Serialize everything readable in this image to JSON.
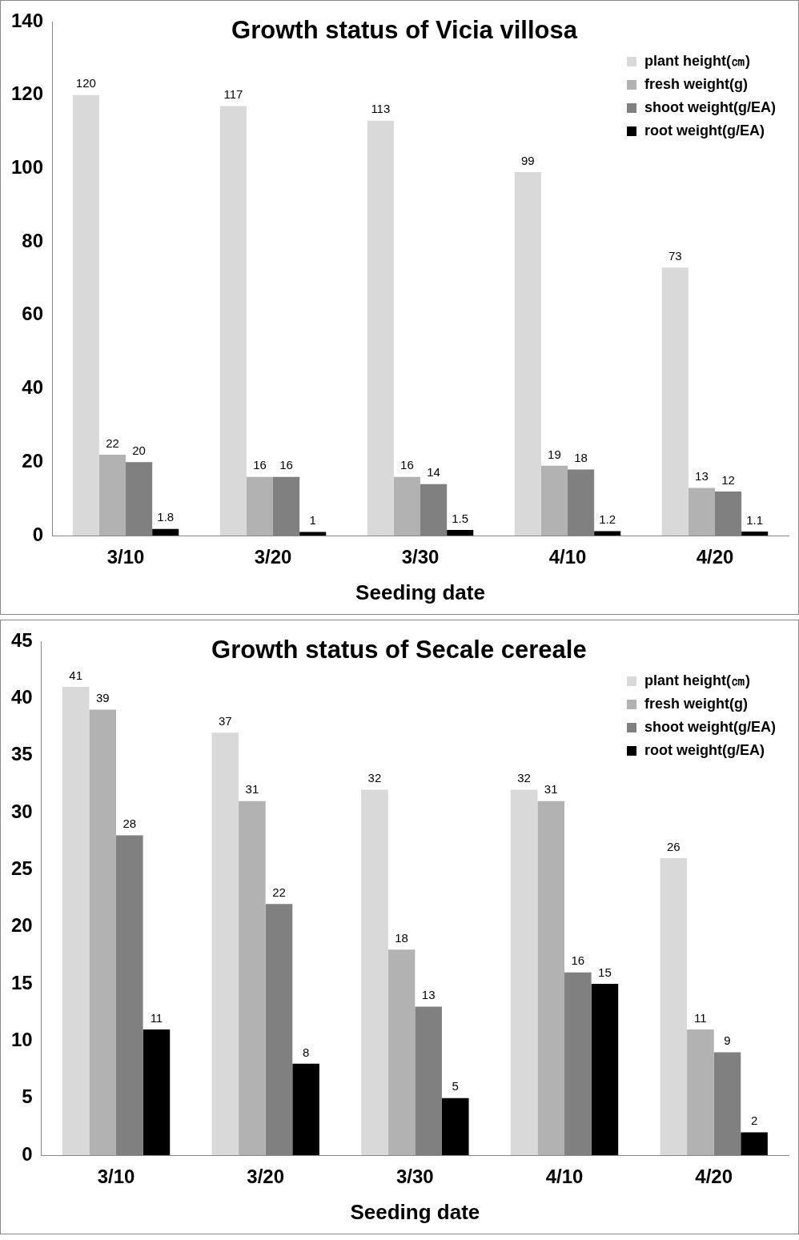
{
  "chart_data": [
    {
      "type": "bar",
      "title": "Growth status of Vicia villosa",
      "xlabel": "Seeding date",
      "categories": [
        "3/10",
        "3/20",
        "3/30",
        "4/10",
        "4/20"
      ],
      "ylim": [
        0,
        140
      ],
      "yticks": [
        0,
        20,
        40,
        60,
        80,
        100,
        120,
        140
      ],
      "grid": false,
      "legend": "top right",
      "data_labels": true,
      "series": [
        {
          "name": "plant height(㎝)",
          "color": "#d9d9d9",
          "values": [
            120,
            117,
            113,
            99,
            73
          ]
        },
        {
          "name": "fresh weight(g)",
          "color": "#b2b2b2",
          "values": [
            22,
            16,
            16,
            19,
            13
          ]
        },
        {
          "name": "shoot weight(g/EA)",
          "color": "#808080",
          "values": [
            20,
            16,
            14,
            18,
            12
          ]
        },
        {
          "name": "root weight(g/EA)",
          "color": "#000000",
          "values": [
            1.8,
            1,
            1.5,
            1.2,
            1.1
          ]
        }
      ]
    },
    {
      "type": "bar",
      "title": "Growth status of Secale cereale",
      "xlabel": "Seeding date",
      "categories": [
        "3/10",
        "3/20",
        "3/30",
        "4/10",
        "4/20"
      ],
      "ylim": [
        0,
        45
      ],
      "yticks": [
        0,
        5,
        10,
        15,
        20,
        25,
        30,
        35,
        40,
        45
      ],
      "grid": false,
      "legend": "top right",
      "data_labels": true,
      "series": [
        {
          "name": "plant height(㎝)",
          "color": "#d9d9d9",
          "values": [
            41,
            37,
            32,
            32,
            26
          ]
        },
        {
          "name": "fresh weight(g)",
          "color": "#b2b2b2",
          "values": [
            39,
            31,
            18,
            31,
            11
          ]
        },
        {
          "name": "shoot weight(g/EA)",
          "color": "#808080",
          "values": [
            28,
            22,
            13,
            16,
            9
          ]
        },
        {
          "name": "root weight(g/EA)",
          "color": "#000000",
          "values": [
            11,
            8,
            5,
            15,
            2
          ]
        }
      ]
    }
  ]
}
